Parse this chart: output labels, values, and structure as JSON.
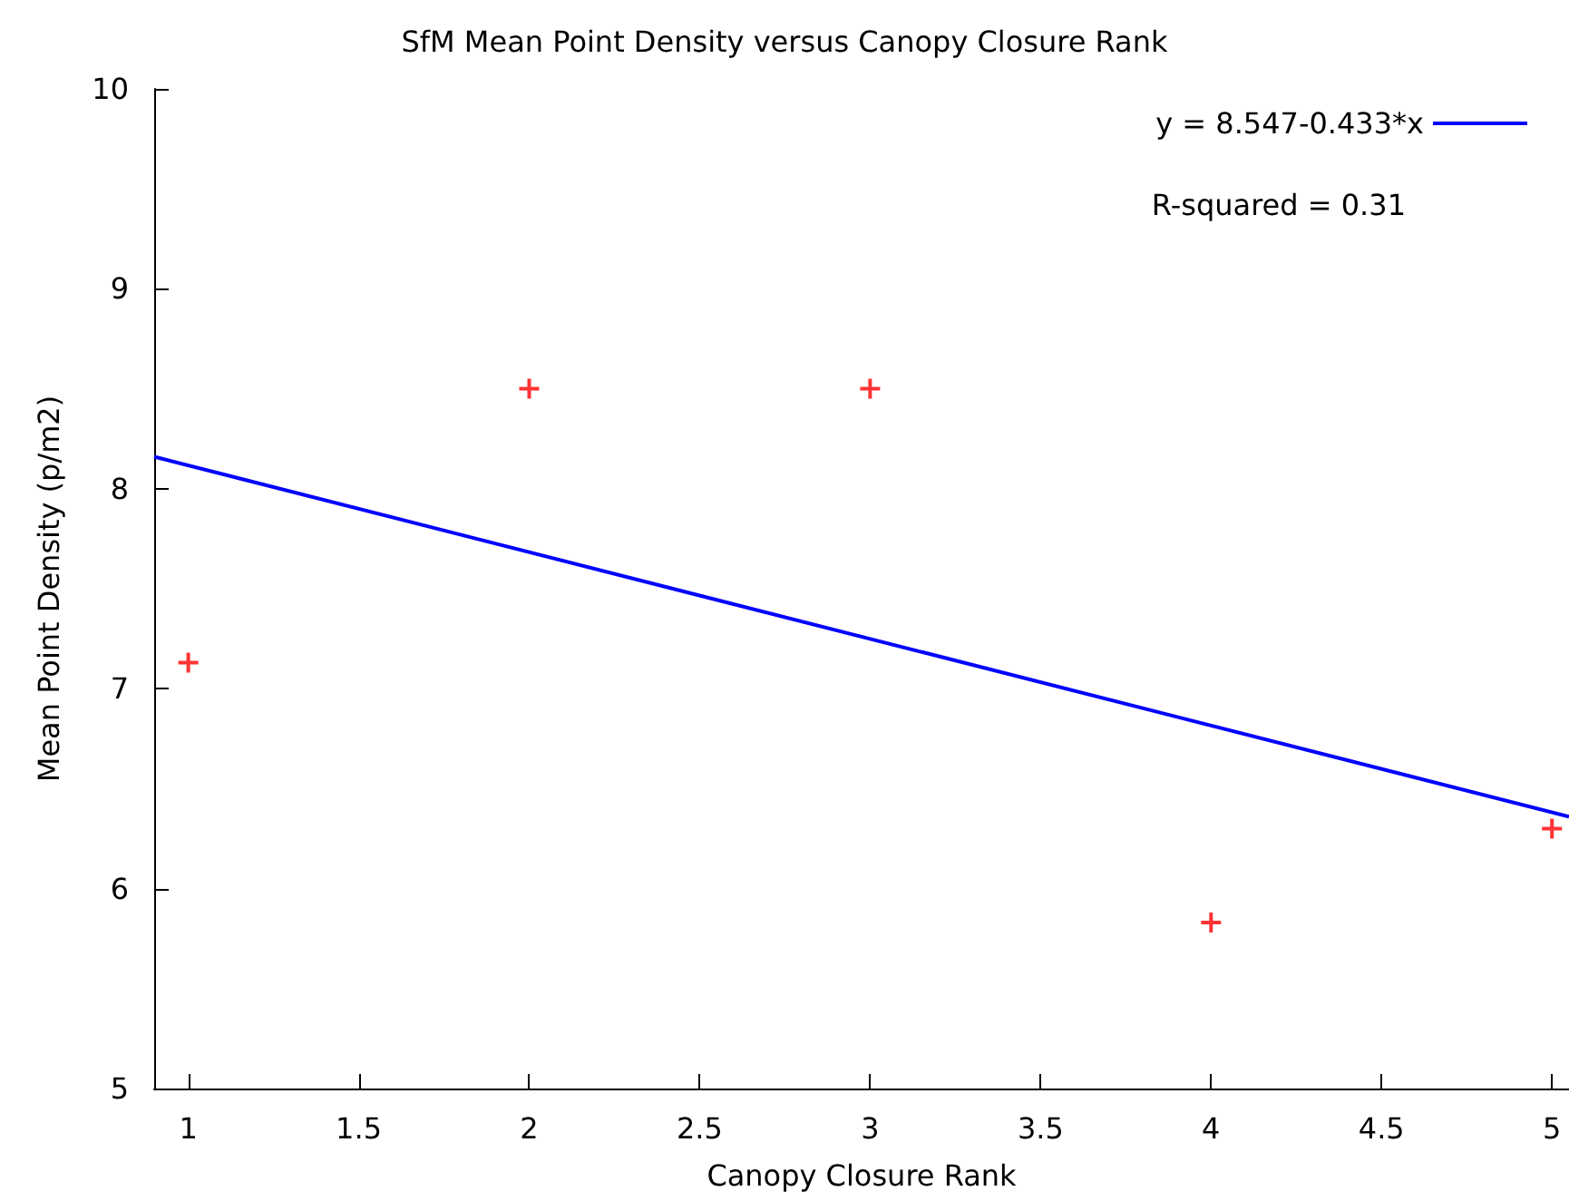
{
  "chart_data": {
    "type": "scatter",
    "title": "SfM Mean Point Density versus Canopy Closure Rank",
    "xlabel": "Canopy Closure Rank",
    "ylabel": "Mean Point Density (p/m2)",
    "xlim": [
      0.9,
      5.05
    ],
    "xticks": [
      1,
      1.5,
      2,
      2.5,
      3,
      3.5,
      4,
      4.5,
      5
    ],
    "ylim": [
      5,
      10
    ],
    "yticks": [
      5,
      6,
      7,
      8,
      9,
      10
    ],
    "grid": false,
    "legend": "top right",
    "annotations": [
      "R-squared = 0.31"
    ],
    "series": [
      {
        "color": "#ff0000",
        "marker": "cross",
        "x": [
          1,
          2,
          3,
          4,
          5
        ],
        "values": [
          7.13,
          8.5,
          8.5,
          5.83,
          6.3
        ]
      },
      {
        "type": "line",
        "name": "y = 8.547-0.433*x",
        "color": "#0000ff",
        "marker": "none",
        "line_style": "solid",
        "x": [
          0.9,
          5.05
        ],
        "values": [
          8.16,
          6.36
        ]
      }
    ]
  }
}
